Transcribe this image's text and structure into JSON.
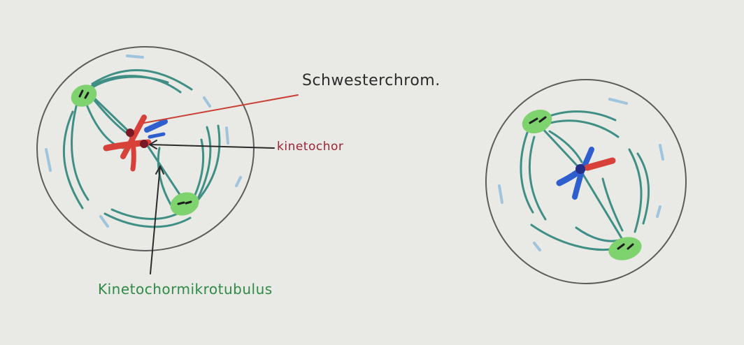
{
  "labels": {
    "sister_chromatids": "Schwesterchrom.",
    "kinetochore": "kinetochor",
    "kinetochore_microtubule": "Kinetochormikrotubulus"
  },
  "colors": {
    "paper": "#e9e9e5",
    "cell_outline": "#5c5c5c",
    "centrosome": "#7fd36e",
    "microtubule": "#3f8f86",
    "chromatid_red": "#d8413a",
    "chromatid_blue": "#2f5fcf",
    "kinetochore_dot": "#232e86",
    "pointer_red": "#c94034",
    "label_red": "#9c2434",
    "label_green": "#2f8a45",
    "ink": "#2b2b2b",
    "membrane_dash": "#9fc4de"
  },
  "icons": {
    "pointer_arrow": "arrow-icon"
  }
}
